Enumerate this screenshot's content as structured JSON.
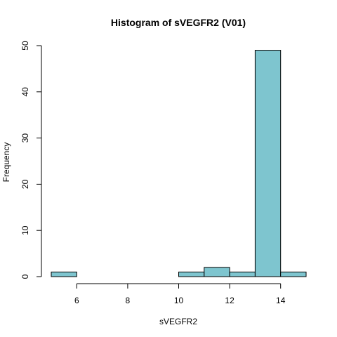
{
  "chart_data": {
    "type": "bar",
    "title": "Histogram of sVEGFR2 (V01)",
    "xlabel": "sVEGFR2",
    "ylabel": "Frequency",
    "bin_edges": [
      5,
      6,
      7,
      8,
      9,
      10,
      11,
      12,
      13,
      14,
      15
    ],
    "values": [
      1,
      0,
      0,
      0,
      0,
      1,
      2,
      1,
      49,
      1
    ],
    "xlim": [
      5,
      15
    ],
    "ylim": [
      0,
      50
    ],
    "x_ticks": [
      6,
      8,
      10,
      12,
      14
    ],
    "y_ticks": [
      0,
      10,
      20,
      30,
      40,
      50
    ],
    "grid": false,
    "bar_color": "#7EC5CF"
  }
}
